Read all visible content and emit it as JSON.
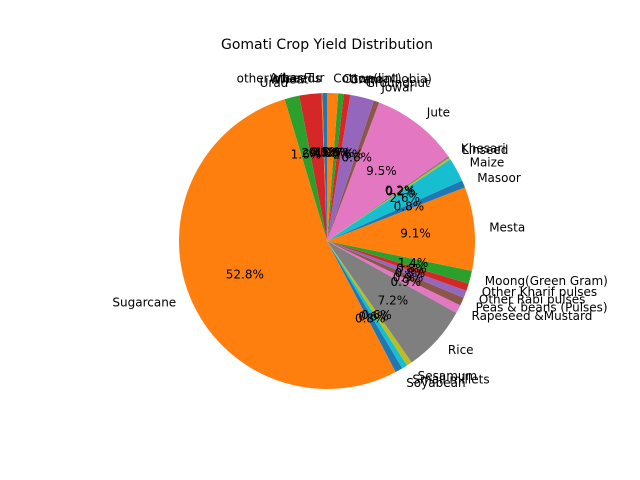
{
  "chart_data": {
    "type": "pie",
    "title": "Gomati Crop Yield Distribution",
    "start_angle_deg": 90,
    "direction": "counterclockwise",
    "slices": [
      {
        "label": "Arhar/Tur",
        "value": 0.5,
        "pct_label": "0.5%",
        "color": "#1f77b4"
      },
      {
        "label": "other oilseeds",
        "value": 0.1,
        "pct_label": "0.1%",
        "color": "#ff7f0e"
      },
      {
        "label": "Wheat",
        "value": 2.4,
        "pct_label": "2.4%",
        "color": "#d62728"
      },
      {
        "label": "Urad",
        "value": 1.6,
        "pct_label": "1.6%",
        "color": "#2ca02c"
      },
      {
        "label": "Sugarcane",
        "value": 52.8,
        "pct_label": "52.8%",
        "color": "#ff7f0e"
      },
      {
        "label": "Soyabean",
        "value": 0.8,
        "pct_label": "0.8%",
        "color": "#1f77b4"
      },
      {
        "label": "Small millets",
        "value": 0.6,
        "pct_label": "0.6%",
        "color": "#17becf"
      },
      {
        "label": "Sesamum",
        "value": 0.6,
        "pct_label": "0.6%",
        "color": "#bcbd22"
      },
      {
        "label": "Rice",
        "value": 7.2,
        "pct_label": "7.2%",
        "color": "#7f7f7f"
      },
      {
        "label": "Rapeseed &Mustard",
        "value": 0.9,
        "pct_label": "0.9%",
        "color": "#e377c2"
      },
      {
        "label": "Peas & beans (Pulses)",
        "value": 0.9,
        "pct_label": "0.9%",
        "color": "#8c564b"
      },
      {
        "label": "Other Rabi pulses",
        "value": 0.8,
        "pct_label": "0.8%",
        "color": "#9467bd"
      },
      {
        "label": "Other Kharif pulses",
        "value": 0.8,
        "pct_label": "0.8%",
        "color": "#d62728"
      },
      {
        "label": "Moong(Green Gram)",
        "value": 1.4,
        "pct_label": "1.4%",
        "color": "#2ca02c"
      },
      {
        "label": "Mesta",
        "value": 9.1,
        "pct_label": "9.1%",
        "color": "#ff7f0e"
      },
      {
        "label": "Masoor",
        "value": 0.8,
        "pct_label": "0.8%",
        "color": "#1f77b4"
      },
      {
        "label": "Maize",
        "value": 2.6,
        "pct_label": "2.6%",
        "color": "#17becf"
      },
      {
        "label": "Linseed",
        "value": 0.2,
        "pct_label": "0.2%",
        "color": "#bcbd22"
      },
      {
        "label": "Khesari",
        "value": 0.2,
        "pct_label": "0.2%",
        "color": "#7f7f7f"
      },
      {
        "label": "Jute",
        "value": 9.5,
        "pct_label": "9.5%",
        "color": "#e377c2"
      },
      {
        "label": "Jowar",
        "value": 0.6,
        "pct_label": "0.6%",
        "color": "#8c564b"
      },
      {
        "label": "Groundnut",
        "value": 2.6,
        "pct_label": "2.6%",
        "color": "#9467bd"
      },
      {
        "label": "Gram",
        "value": 0.7,
        "pct_label": "0.7%",
        "color": "#d62728"
      },
      {
        "label": "Cowpea(Lobia)",
        "value": 0.6,
        "pct_label": "0.6%",
        "color": "#2ca02c"
      },
      {
        "label": "Cotton(lint)",
        "value": 1.2,
        "pct_label": "1.2%",
        "color": "#ff7f0e"
      }
    ]
  }
}
